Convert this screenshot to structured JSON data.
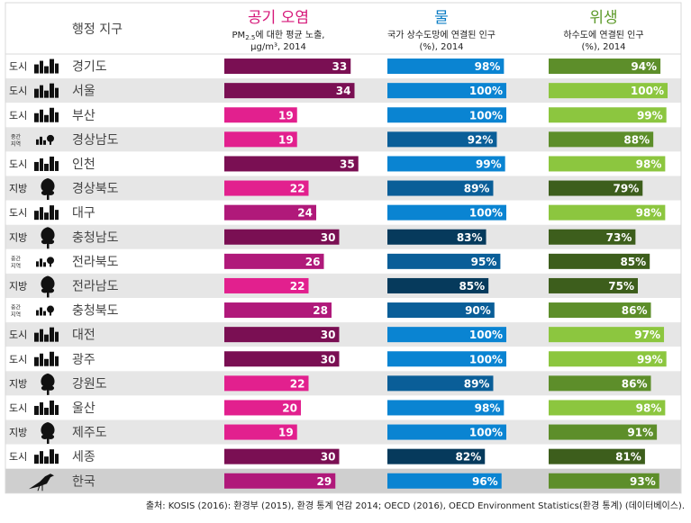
{
  "chart_data": {
    "type": "table",
    "columns": {
      "region": {
        "header": "행정 지구"
      },
      "air": {
        "title": "공기 오염",
        "subtitle_lines": [
          "PM",
          "2.5",
          "에 대한 평균 노출,",
          "μg/m³, 2014"
        ],
        "color_high": "#7a0f53",
        "color_mid": "#b0197a",
        "color_low": "#e2208e",
        "xlim": [
          0,
          40
        ]
      },
      "water": {
        "title": "물",
        "subtitle_lines": [
          "국가 상수도망에 연결된 인구",
          "(%), 2014"
        ],
        "color_high": "#0a84d2",
        "color_mid": "#0a5e98",
        "color_low": "#063a5c",
        "xlim": [
          0,
          100
        ]
      },
      "sanitation": {
        "title": "위생",
        "subtitle_lines": [
          "하수도에 연결된 인구",
          "(%), 2014"
        ],
        "color_high": "#8cc63f",
        "color_mid": "#5d8e2a",
        "color_low": "#3d5e1c",
        "xlim": [
          0,
          100
        ]
      }
    },
    "type_labels": {
      "urban": "도시",
      "intermediate": "중간\n지역",
      "rural": "지방"
    },
    "rows": [
      {
        "name": "경기도",
        "type": "urban",
        "air": 33,
        "water": 98,
        "sanitation": 94
      },
      {
        "name": "서울",
        "type": "urban",
        "air": 34,
        "water": 100,
        "sanitation": 100
      },
      {
        "name": "부산",
        "type": "urban",
        "air": 19,
        "water": 100,
        "sanitation": 99
      },
      {
        "name": "경상남도",
        "type": "intermediate",
        "air": 19,
        "water": 92,
        "sanitation": 88
      },
      {
        "name": "인천",
        "type": "urban",
        "air": 35,
        "water": 99,
        "sanitation": 98
      },
      {
        "name": "경상북도",
        "type": "rural",
        "air": 22,
        "water": 89,
        "sanitation": 79
      },
      {
        "name": "대구",
        "type": "urban",
        "air": 24,
        "water": 100,
        "sanitation": 98
      },
      {
        "name": "충청남도",
        "type": "rural",
        "air": 30,
        "water": 83,
        "sanitation": 73
      },
      {
        "name": "전라북도",
        "type": "intermediate",
        "air": 26,
        "water": 95,
        "sanitation": 85
      },
      {
        "name": "전라남도",
        "type": "rural",
        "air": 22,
        "water": 85,
        "sanitation": 75
      },
      {
        "name": "충청북도",
        "type": "intermediate",
        "air": 28,
        "water": 90,
        "sanitation": 86
      },
      {
        "name": "대전",
        "type": "urban",
        "air": 30,
        "water": 100,
        "sanitation": 97
      },
      {
        "name": "광주",
        "type": "urban",
        "air": 30,
        "water": 100,
        "sanitation": 99
      },
      {
        "name": "강원도",
        "type": "rural",
        "air": 22,
        "water": 89,
        "sanitation": 86
      },
      {
        "name": "울산",
        "type": "urban",
        "air": 20,
        "water": 98,
        "sanitation": 98
      },
      {
        "name": "제주도",
        "type": "rural",
        "air": 19,
        "water": 100,
        "sanitation": 91
      },
      {
        "name": "세종",
        "type": "urban",
        "air": 30,
        "water": 82,
        "sanitation": 81
      },
      {
        "name": "한국",
        "type": "national",
        "air": 29,
        "water": 96,
        "sanitation": 93
      }
    ],
    "colors": {
      "stripe": "#e6e6e6",
      "national_row": "#cfcfcf",
      "header_title_air": "#d6197a",
      "header_title_water": "#0a7cc4",
      "header_title_sanitation": "#5d9a2a"
    }
  },
  "source": "출처: KOSIS (2016): 환경부 (2015), 환경 통계 연감 2014; OECD (2016), OECD Environment Statistics(환경 통계) (데이터베이스)."
}
